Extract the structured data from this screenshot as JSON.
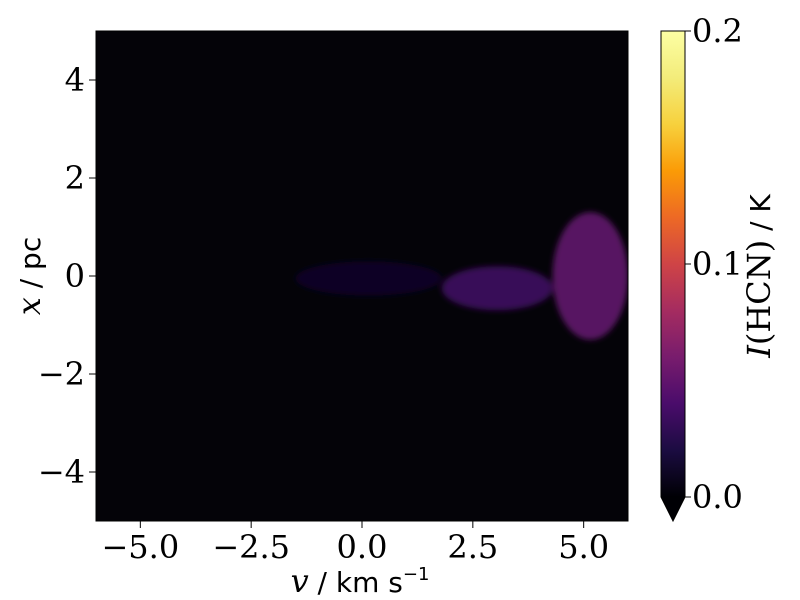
{
  "chart_data": {
    "type": "heatmap",
    "x_var": "v",
    "x_sep": " / ",
    "x_unit": "km s",
    "x_unit_exp": "−1",
    "y_var": "x",
    "y_sep": " / ",
    "y_unit": "pc",
    "xlim": [
      -6,
      6
    ],
    "ylim": [
      -5,
      5
    ],
    "x_ticks": [
      -5.0,
      -2.5,
      0.0,
      2.5,
      5.0
    ],
    "x_tick_labels": [
      "−5.0",
      "−2.5",
      "0.0",
      "2.5",
      "5.0"
    ],
    "y_ticks": [
      -4,
      -2,
      0,
      2,
      4
    ],
    "y_tick_labels": [
      "−4",
      "−2",
      "0",
      "2",
      "4"
    ],
    "colorbar": {
      "label_func": "I",
      "label_arg": "(HCN)",
      "label_sep": " / ",
      "label_unit": "K",
      "range": [
        0.0,
        0.2
      ],
      "ticks": [
        0.0,
        0.1,
        0.2
      ],
      "tick_labels": [
        "0.0",
        "0.1",
        "0.2"
      ],
      "extend": "min",
      "colormap": "inferno"
    },
    "emission_regions": [
      {
        "v_min": 4.3,
        "v_max": 6.0,
        "x_min": -1.3,
        "x_max": 1.3,
        "peak_intensity": 0.05
      },
      {
        "v_min": 1.8,
        "v_max": 4.3,
        "x_min": -0.7,
        "x_max": 0.2,
        "peak_intensity": 0.035
      },
      {
        "v_min": -1.5,
        "v_max": 1.8,
        "x_min": -0.4,
        "x_max": 0.3,
        "peak_intensity": 0.012
      }
    ]
  }
}
